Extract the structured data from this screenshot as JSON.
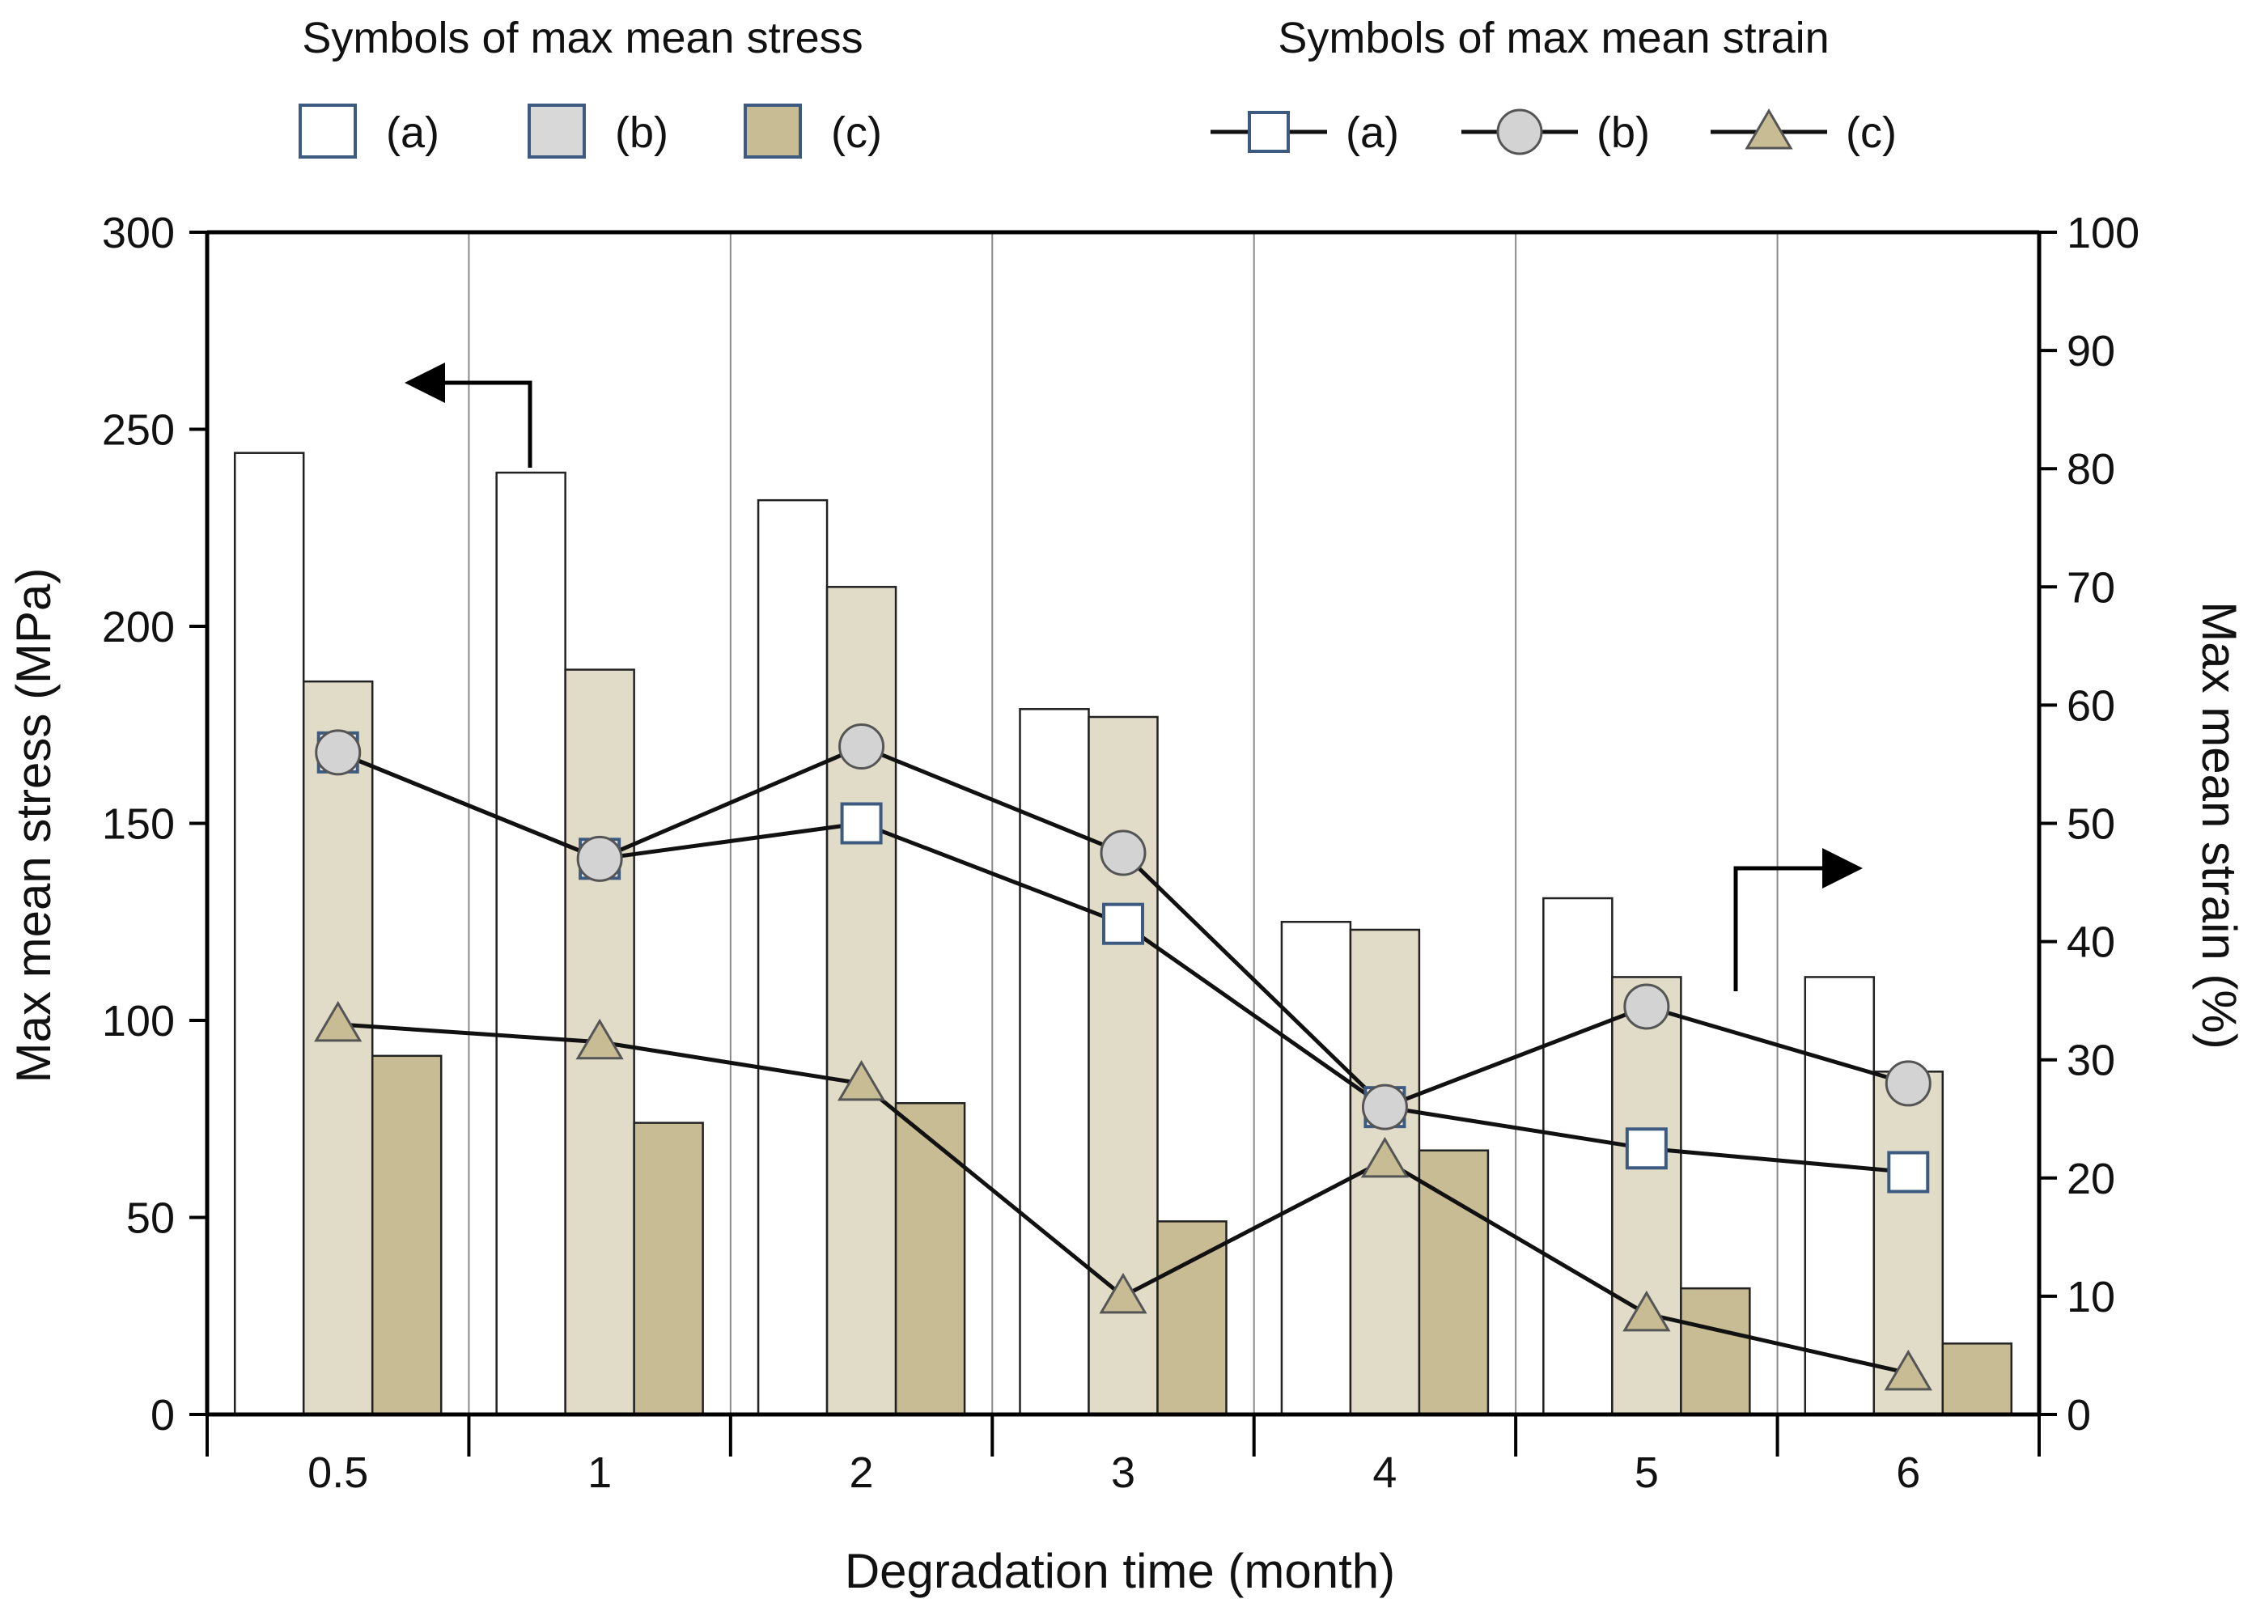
{
  "chart_data": {
    "type": "bar+line",
    "categories": [
      "0.5",
      "1",
      "2",
      "3",
      "4",
      "5",
      "6"
    ],
    "xlabel": "Degradation time (month)",
    "ylabel_left": "Max mean stress (MPa)",
    "ylabel_right": "Max mean strain (%)",
    "ylim_left": [
      0,
      300
    ],
    "ylim_right": [
      0,
      100
    ],
    "yticks_left": [
      "0",
      "50",
      "100",
      "150",
      "200",
      "250",
      "300"
    ],
    "yticks_right": [
      "0",
      "10",
      "20",
      "30",
      "40",
      "50",
      "60",
      "70",
      "80",
      "90",
      "100"
    ],
    "grid": "vertical separators between categories",
    "legend_stress": {
      "title": "Symbols of max mean stress",
      "items": [
        {
          "label": "(a)",
          "fill": "#ffffff",
          "stroke": "#3d5a80"
        },
        {
          "label": "(b)",
          "fill": "#d8d8d8",
          "stroke": "#3d5a80"
        },
        {
          "label": "(c)",
          "fill": "#c8bc95",
          "stroke": "#3d5a80"
        }
      ]
    },
    "legend_strain": {
      "title": "Symbols of max mean strain",
      "items": [
        {
          "label": "(a)",
          "marker": "square"
        },
        {
          "label": "(b)",
          "marker": "circle"
        },
        {
          "label": "(c)",
          "marker": "triangle"
        }
      ]
    },
    "bar_series": [
      {
        "name": "(a)",
        "axis": "left",
        "fill": "#ffffff",
        "stroke": "#222222",
        "values": [
          244,
          239,
          232,
          179,
          125,
          131,
          111
        ]
      },
      {
        "name": "(b)",
        "axis": "left",
        "fill": "#e1dcc8",
        "stroke": "#222222",
        "values": [
          186,
          189,
          210,
          177,
          123,
          111,
          87
        ]
      },
      {
        "name": "(c)",
        "axis": "left",
        "fill": "#c8bc95",
        "stroke": "#222222",
        "values": [
          91,
          74,
          79,
          49,
          67,
          32,
          18
        ]
      }
    ],
    "line_series": [
      {
        "name": "(a)",
        "axis": "right",
        "marker": "square",
        "fill": "#ffffff",
        "stroke": "#3d5a80",
        "values": [
          56,
          47,
          50,
          41.5,
          26,
          22.5,
          20.5
        ]
      },
      {
        "name": "(b)",
        "axis": "right",
        "marker": "circle",
        "fill": "#d3d3d3",
        "stroke": "#555555",
        "values": [
          56,
          47,
          56.5,
          47.5,
          26,
          34.5,
          28
        ]
      },
      {
        "name": "(c)",
        "axis": "right",
        "marker": "triangle",
        "fill": "#c8bc95",
        "stroke": "#555555",
        "values": [
          33,
          31.5,
          28,
          10,
          21.5,
          8.5,
          3.5
        ]
      }
    ],
    "annotations": [
      {
        "type": "arrow",
        "points_to": "left axis",
        "near": "bar series (a) at 1 month"
      },
      {
        "type": "arrow",
        "points_to": "right axis",
        "near": "line series (b) at 5 month"
      }
    ]
  }
}
